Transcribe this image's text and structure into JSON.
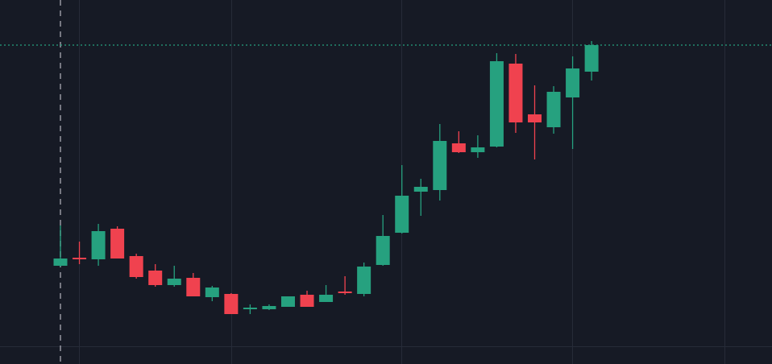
{
  "chart_data": {
    "type": "candlestick",
    "ylim": [
      0,
      452
    ],
    "up_color": "#26a17f",
    "down_color": "#f0424f",
    "open": [
      122,
      132,
      130,
      168,
      134,
      116,
      98,
      107,
      83,
      87,
      68,
      68,
      71,
      86,
      77,
      90,
      87,
      123,
      163,
      214,
      216,
      274,
      263,
      270,
      373,
      310,
      294,
      331,
      363
    ],
    "high": [
      172,
      152,
      174,
      171,
      137,
      124,
      122,
      113,
      97,
      88,
      74,
      74,
      84,
      91,
      98,
      109,
      126,
      185,
      247,
      230,
      298,
      289,
      284,
      386,
      385,
      346,
      345,
      382,
      401
    ],
    "low": [
      121,
      124,
      122,
      131,
      106,
      96,
      96,
      84,
      78,
      62,
      62,
      67,
      71,
      71,
      77,
      86,
      84,
      122,
      162,
      184,
      203,
      262,
      256,
      269,
      287,
      254,
      286,
      267,
      352
    ],
    "close": [
      131,
      130,
      165,
      131,
      108,
      98,
      106,
      84,
      95,
      62,
      70,
      72,
      84,
      71,
      86,
      88,
      121,
      159,
      209,
      220,
      277,
      263,
      269,
      376,
      300,
      300,
      338,
      367,
      396
    ]
  }
}
